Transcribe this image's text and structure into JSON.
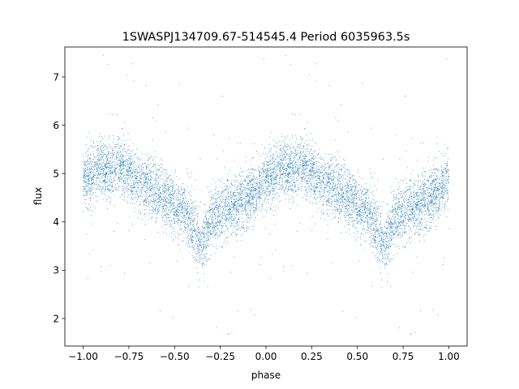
{
  "chart_data": {
    "type": "scatter",
    "title": "1SWASPJ134709.67-514545.4 Period 6035963.5s",
    "xlabel": "phase",
    "ylabel": "flux",
    "xlim": [
      -1.1,
      1.1
    ],
    "ylim": [
      1.43,
      7.62
    ],
    "x_ticks": [
      -1.0,
      -0.75,
      -0.5,
      -0.25,
      0.0,
      0.25,
      0.5,
      0.75,
      1.0
    ],
    "x_tick_labels": [
      "−1.00",
      "−0.75",
      "−0.50",
      "−0.25",
      "0.00",
      "0.25",
      "0.50",
      "0.75",
      "1.00"
    ],
    "y_ticks": [
      2,
      3,
      4,
      5,
      6,
      7
    ],
    "y_tick_labels": [
      "2",
      "3",
      "4",
      "5",
      "6",
      "7"
    ],
    "grid": false,
    "legend": "none",
    "marker_color": "#1f77b4",
    "series": [
      {
        "profile_phase": [
          0.0,
          0.05,
          0.1,
          0.15,
          0.2,
          0.25,
          0.3,
          0.35,
          0.4,
          0.45,
          0.5,
          0.55,
          0.6,
          0.65,
          0.7,
          0.75,
          0.8,
          0.85,
          0.9,
          0.95,
          1.0
        ],
        "profile_flux": [
          4.9,
          5.0,
          5.1,
          5.05,
          5.2,
          5.0,
          4.8,
          4.75,
          4.6,
          4.5,
          4.35,
          4.2,
          3.9,
          3.5,
          4.1,
          4.2,
          4.3,
          4.35,
          4.5,
          4.65,
          4.9
        ],
        "scatter_sd": 0.3,
        "points_per_cycle": 4200,
        "outlier_fraction": 0.015
      }
    ]
  }
}
